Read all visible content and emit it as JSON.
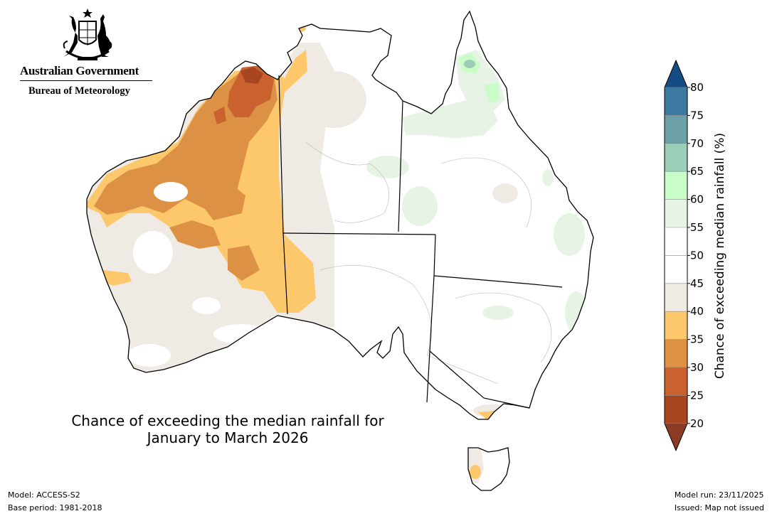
{
  "logo": {
    "government": "Australian Government",
    "agency": "Bureau of Meteorology",
    "icon": "coat-of-arms"
  },
  "title": {
    "line1": "Chance of exceeding the median rainfall for",
    "line2": "January to March 2026"
  },
  "footer": {
    "model": "Model: ACCESS-S2",
    "base_period": "Base period: 1981-2018",
    "model_run": "Model run: 23/11/2025",
    "issued": "Issued: Map not issued"
  },
  "colorbar": {
    "label": "Chance of exceeding median rainfall (%)",
    "ticks": [
      "20",
      "25",
      "30",
      "35",
      "40",
      "45",
      "50",
      "55",
      "60",
      "65",
      "70",
      "75",
      "80"
    ],
    "bands": [
      {
        "range": "<20",
        "color": "#8b3a24"
      },
      {
        "range": "20-25",
        "color": "#a8461f"
      },
      {
        "range": "25-30",
        "color": "#c9622e"
      },
      {
        "range": "30-35",
        "color": "#dc9144"
      },
      {
        "range": "35-40",
        "color": "#fdc86b"
      },
      {
        "range": "40-45",
        "color": "#efeae4"
      },
      {
        "range": "45-50",
        "color": "#ffffff"
      },
      {
        "range": "50-55",
        "color": "#ffffff"
      },
      {
        "range": "55-60",
        "color": "#e7f4e5"
      },
      {
        "range": "60-65",
        "color": "#c9fcc9"
      },
      {
        "range": "65-70",
        "color": "#9ccdb8"
      },
      {
        "range": "70-75",
        "color": "#6da1a8"
      },
      {
        "range": "75-80",
        "color": "#3c79a0"
      },
      {
        "range": ">80",
        "color": "#154c83"
      }
    ]
  }
}
